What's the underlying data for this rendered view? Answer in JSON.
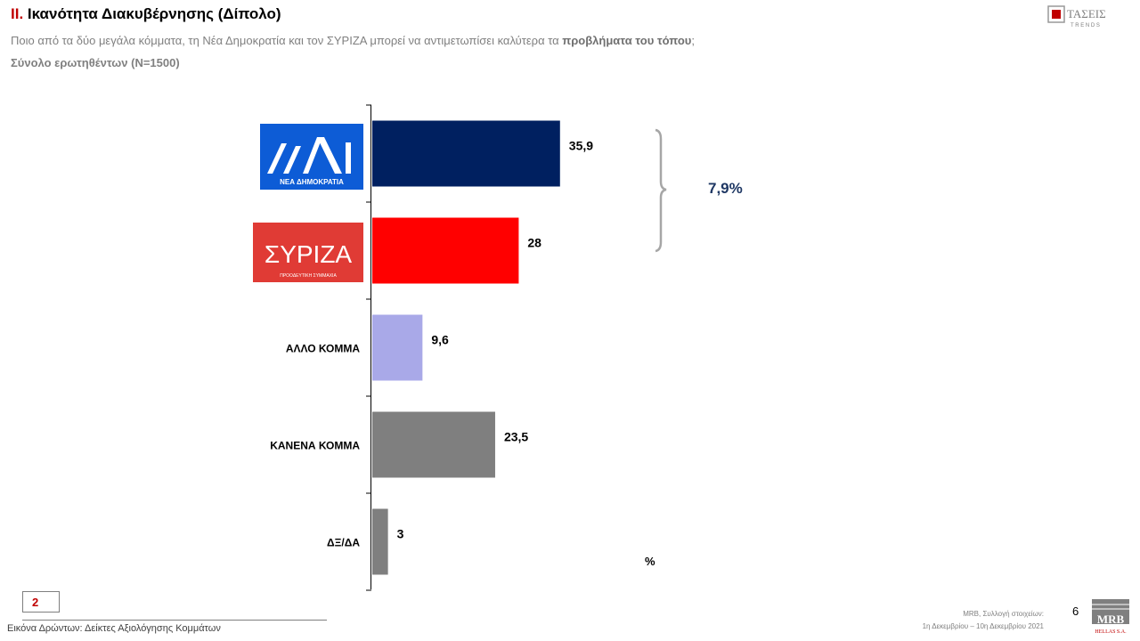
{
  "header": {
    "title_num": "II.",
    "title_text": " Ικανότητα Διακυβέρνησης (Δίπολο)",
    "question_main": "Ποιο από τα δύο μεγάλα κόμματα, τη Νέα Δημοκρατία και τον ΣΥΡΙΖΑ μπορεί να αντιμετωπίσει καλύτερα  τα ",
    "question_bold": "προβλήματα του τόπου",
    "question_end": ";",
    "sample": "Σύνολο ερωτηθέντων (N=1500)",
    "logo_text": "ΤΑΣΕΙΣ",
    "logo_sub": "T R E N D S"
  },
  "logos": {
    "nd_text": "ΝΕΑ ΔΗΜΟΚΡΑΤΙΑ",
    "syriza_text": "ΣΥΡΙΖΑ",
    "syriza_sub": "ΠΡΟΟΔΕΥΤΙΚΗ ΣΥΜΜΑΧΙΑ"
  },
  "chart_data": {
    "type": "bar",
    "orientation": "horizontal",
    "categories": [
      "ΝΕΑ ΔΗΜΟΚΡΑΤΙΑ",
      "ΣΥΡΙΖΑ",
      "ΑΛΛΟ ΚΟΜΜΑ",
      "ΚΑΝΕΝΑ ΚΟΜΜΑ",
      "ΔΞ/ΔΑ"
    ],
    "category_labels_shown": [
      "",
      "",
      "ΑΛΛΟ ΚΟΜΜΑ",
      "ΚΑΝΕΝΑ ΚΟΜΜΑ",
      "ΔΞ/ΔΑ"
    ],
    "values": [
      35.9,
      28,
      9.6,
      23.5,
      3
    ],
    "value_labels": [
      "35,9",
      "28",
      "9,6",
      "23,5",
      "3"
    ],
    "colors": [
      "#002060",
      "#ff0000",
      "#a9a9e8",
      "#7f7f7f",
      "#7f7f7f"
    ],
    "xlim": [
      0,
      70
    ],
    "difference_label": "7,9%",
    "unit_label": "%"
  },
  "footer": {
    "page_box": "2",
    "caption": "Εικόνα Δρώντων: Δείκτες Αξιολόγησης  Κομμάτων",
    "source_line1": "MRB, Συλλογή στοιχείων:",
    "source_line2": "1η Δεκεμβρίου –  10η Δεκεμβρίου 2021",
    "page_number": "6",
    "logo_mrb": "MRB",
    "logo_mrb_sub": "HELLAS S.A."
  }
}
